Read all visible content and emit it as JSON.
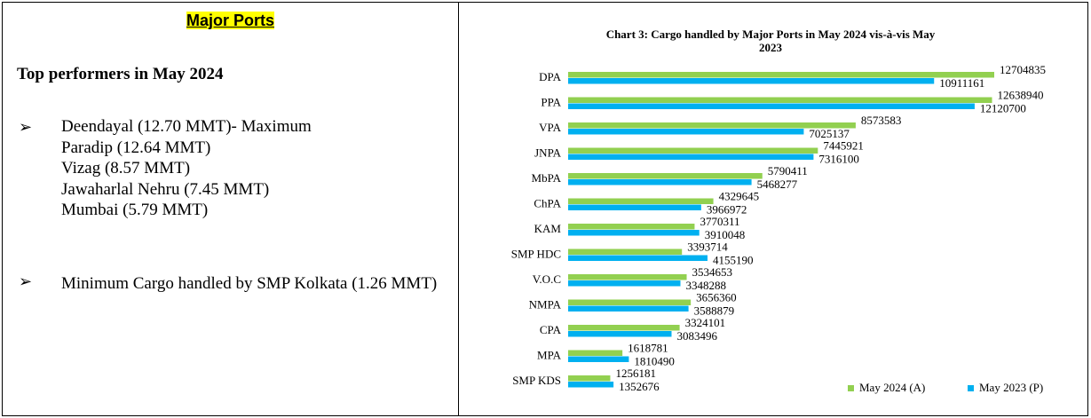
{
  "left": {
    "heading": "Major Ports",
    "subheading": "Top performers in May 2024",
    "bullets": [
      [
        "Deendayal (12.70 MMT)- Maximum",
        "Paradip (12.64 MMT)",
        "Vizag (8.57 MMT)",
        "Jawaharlal Nehru (7.45 MMT)",
        "Mumbai (5.79 MMT)"
      ],
      [
        "Minimum Cargo handled by SMP Kolkata (1.26 MMT)"
      ]
    ]
  },
  "chart_data": {
    "type": "hbar",
    "title": "Chart 3: Cargo handled by Major Ports in May 2024 vis-à-vis May 2023",
    "categories": [
      "DPA",
      "PPA",
      "VPA",
      "JNPA",
      "MbPA",
      "ChPA",
      "KAM",
      "SMP HDC",
      "V.O.C",
      "NMPA",
      "CPA",
      "MPA",
      "SMP KDS"
    ],
    "series": [
      {
        "name": "May 2024 (A)",
        "color": "#92d050",
        "values": [
          12704835,
          12638940,
          8573583,
          7445921,
          5790411,
          4329645,
          3770311,
          3393714,
          3534653,
          3656360,
          3324101,
          1618781,
          1256181
        ]
      },
      {
        "name": "May 2023 (P)",
        "color": "#00b0f0",
        "values": [
          10911161,
          12120700,
          7025137,
          7316100,
          5468277,
          3966972,
          3910048,
          4155190,
          3348288,
          3588879,
          3083496,
          1810490,
          1352676
        ]
      }
    ],
    "legend": "bottom-right"
  }
}
